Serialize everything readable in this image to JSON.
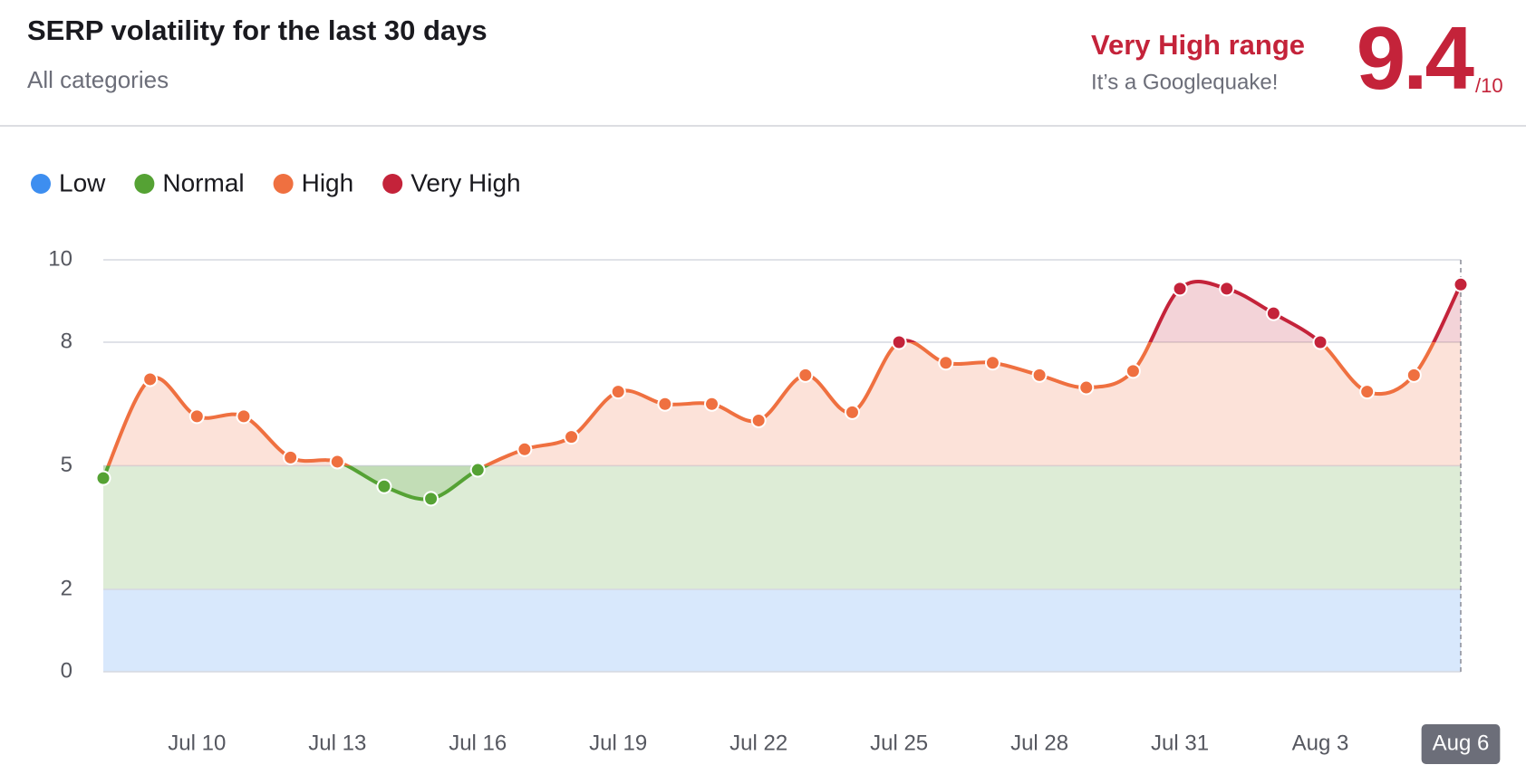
{
  "header": {
    "title": "SERP volatility for the last 30 days",
    "subtitle": "All categories",
    "range_label": "Very High range",
    "range_note": "It’s a Googlequake!",
    "score": 9.4,
    "score_suffix": "/10"
  },
  "chart_data": {
    "type": "line",
    "categories": [
      null,
      null,
      "Jul 10",
      null,
      null,
      "Jul 13",
      null,
      null,
      "Jul 16",
      null,
      null,
      "Jul 19",
      null,
      null,
      "Jul 22",
      null,
      null,
      "Jul 25",
      null,
      null,
      "Jul 28",
      null,
      null,
      "Jul 31",
      null,
      null,
      "Aug 3",
      null,
      null,
      "Aug 6"
    ],
    "values": [
      4.7,
      7.1,
      6.2,
      6.2,
      5.2,
      5.1,
      4.5,
      4.2,
      4.9,
      5.4,
      5.7,
      6.8,
      6.5,
      6.5,
      6.1,
      7.2,
      6.3,
      8.0,
      7.5,
      7.5,
      7.2,
      6.9,
      7.3,
      9.3,
      9.3,
      8.7,
      8.0,
      6.8,
      7.2,
      9.4
    ],
    "ranges": [
      {
        "name": "Low",
        "from": 0,
        "to": 2,
        "color": "#3d8ef0"
      },
      {
        "name": "Normal",
        "from": 2,
        "to": 5,
        "color": "#55a234"
      },
      {
        "name": "High",
        "from": 5,
        "to": 8,
        "color": "#ef7040"
      },
      {
        "name": "Very High",
        "from": 8,
        "to": 10,
        "color": "#c4233a"
      }
    ],
    "ylim": [
      0,
      10
    ],
    "yticks": [
      0,
      2,
      5,
      8,
      10
    ],
    "grid": true
  }
}
